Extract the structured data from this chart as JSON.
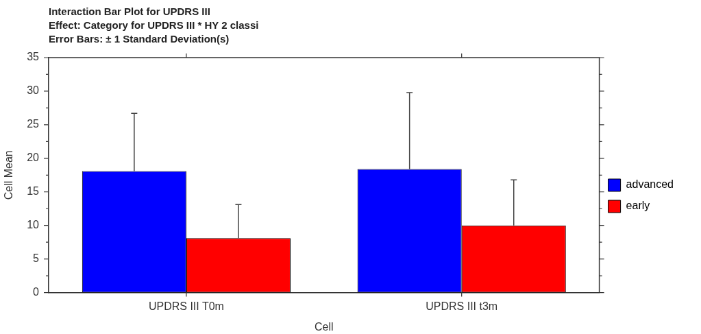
{
  "chart_data": {
    "type": "bar",
    "title": "Interaction Bar Plot for UPDRS III",
    "subtitle": "Effect: Category for UPDRS III * HY 2 classi\nError Bars: ± 1 Standard Deviation(s)",
    "xlabel": "Cell",
    "ylabel": "Cell Mean",
    "categories": [
      "UPDRS III T0m",
      "UPDRS III t3m"
    ],
    "series": [
      {
        "name": "advanced",
        "color": "#0000ff",
        "values": [
          18.1,
          18.4
        ],
        "errors": [
          [
            18.1,
            26.7
          ],
          [
            18.4,
            29.8
          ]
        ]
      },
      {
        "name": "early",
        "color": "#ff0000",
        "values": [
          8.1,
          10.0
        ],
        "errors": [
          [
            8.1,
            13.1
          ],
          [
            10.0,
            16.8
          ]
        ]
      }
    ],
    "ylim": [
      0,
      35
    ],
    "yticks": [
      0,
      {
        "value": 2.5,
        "label": null
      },
      5,
      {
        "value": 7.5,
        "label": null
      },
      10,
      {
        "value": 12.5,
        "label": null
      },
      15,
      {
        "value": 17.5,
        "label": null
      },
      20,
      {
        "value": 22.5,
        "label": null
      },
      25,
      {
        "value": 27.5,
        "label": null
      },
      30,
      {
        "value": 32.5,
        "label": null
      },
      35
    ],
    "legend": "right"
  }
}
